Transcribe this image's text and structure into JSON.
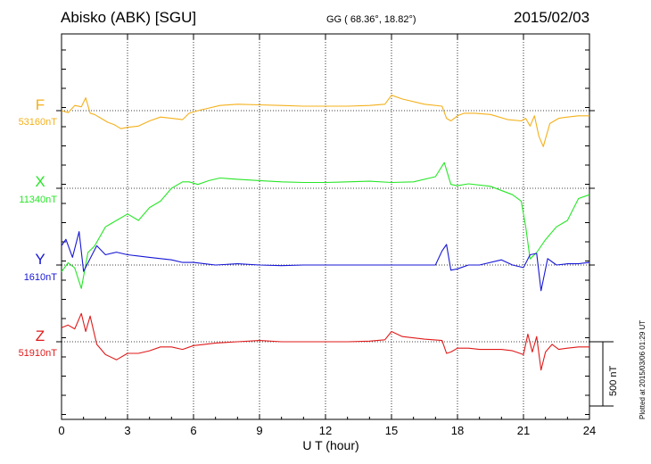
{
  "header": {
    "station": "Abisko (ABK)  [SGU]",
    "coords": "GG ( 68.36°,  18.82°)",
    "date": "2015/02/03"
  },
  "footer": {
    "plotted": "Plotted at 2015/03/06 01:29 UT",
    "scale_bar": "500 nT"
  },
  "colors": {
    "F": "#f4b01a",
    "X": "#27e627",
    "Y": "#1616d6",
    "Z": "#e01a1a",
    "grid": "#000000"
  },
  "chart_data": {
    "type": "line",
    "xlabel": "U T (hour)",
    "xlim": [
      0,
      24
    ],
    "x_ticks": [
      0,
      3,
      6,
      9,
      12,
      15,
      18,
      21,
      24
    ],
    "scale_nT": 500,
    "series": [
      {
        "name": "F",
        "baseline_label": "53160nT",
        "color": "#f4b01a",
        "x": [
          0,
          0.3,
          0.6,
          0.9,
          1.1,
          1.3,
          1.5,
          1.8,
          2.1,
          2.4,
          2.7,
          3.0,
          3.5,
          4.0,
          4.5,
          5.0,
          5.5,
          5.8,
          6.2,
          6.7,
          7.2,
          8,
          9,
          10,
          11,
          12,
          13,
          14,
          14.7,
          15.0,
          15.5,
          16.5,
          17.3,
          17.5,
          17.7,
          18.0,
          18.3,
          18.8,
          19.5,
          20.3,
          20.9,
          21.1,
          21.3,
          21.5,
          21.7,
          21.9,
          22.2,
          22.6,
          23.0,
          23.5,
          24.0
        ],
        "y": [
          0,
          -15,
          40,
          30,
          100,
          -20,
          -30,
          -60,
          -90,
          -110,
          -140,
          -130,
          -120,
          -80,
          -50,
          -60,
          -70,
          -20,
          0,
          20,
          40,
          50,
          45,
          40,
          35,
          35,
          35,
          40,
          50,
          120,
          90,
          50,
          35,
          -60,
          -80,
          -40,
          -20,
          -20,
          -30,
          -70,
          -80,
          -60,
          -120,
          -40,
          -200,
          -280,
          -100,
          -60,
          -50,
          -40,
          -40
        ]
      },
      {
        "name": "X",
        "baseline_label": "11340nT",
        "color": "#27e627",
        "x": [
          0,
          0.3,
          0.6,
          0.9,
          1.2,
          1.5,
          2.0,
          2.5,
          3.0,
          3.5,
          4.0,
          4.5,
          5.0,
          5.5,
          5.8,
          6.2,
          6.7,
          7.2,
          8,
          9,
          10,
          11,
          12,
          13,
          14,
          15.0,
          16,
          17,
          17.4,
          17.7,
          18.0,
          18.5,
          19.5,
          20.5,
          20.9,
          21.1,
          21.3,
          21.6,
          22.0,
          22.5,
          23.0,
          23.5,
          24.0
        ],
        "y": [
          -650,
          -580,
          -620,
          -780,
          -500,
          -450,
          -300,
          -250,
          -200,
          -250,
          -150,
          -100,
          0,
          50,
          50,
          30,
          60,
          80,
          70,
          60,
          50,
          45,
          45,
          50,
          55,
          45,
          50,
          90,
          200,
          30,
          20,
          35,
          15,
          -50,
          -100,
          -300,
          -550,
          -500,
          -400,
          -300,
          -250,
          -80,
          -50
        ]
      },
      {
        "name": "Y",
        "baseline_label": "1610nT",
        "color": "#1616d6",
        "x": [
          0,
          0.2,
          0.5,
          0.8,
          1.0,
          1.3,
          1.6,
          2.0,
          2.5,
          3.0,
          3.5,
          4.0,
          4.5,
          5.0,
          5.5,
          6.0,
          6.5,
          7,
          8,
          9,
          10,
          11,
          12,
          13,
          14,
          15,
          16,
          17,
          17.3,
          17.5,
          17.7,
          18.0,
          18.5,
          19,
          20,
          20.5,
          21.0,
          21.3,
          21.6,
          21.8,
          22.1,
          22.5,
          23,
          23.5,
          24
        ],
        "y": [
          150,
          200,
          60,
          260,
          -50,
          50,
          150,
          80,
          100,
          80,
          70,
          60,
          50,
          40,
          20,
          20,
          10,
          0,
          10,
          0,
          -5,
          0,
          0,
          0,
          0,
          0,
          0,
          0,
          110,
          160,
          -40,
          -30,
          0,
          0,
          40,
          0,
          -20,
          80,
          90,
          -200,
          50,
          0,
          10,
          10,
          20
        ]
      },
      {
        "name": "Z",
        "baseline_label": "51910nT",
        "color": "#e01a1a",
        "x": [
          0,
          0.3,
          0.6,
          0.9,
          1.1,
          1.3,
          1.6,
          2.0,
          2.5,
          3.0,
          3.5,
          4.0,
          4.5,
          5.0,
          5.5,
          6.0,
          6.5,
          7,
          8,
          9,
          10,
          11,
          12,
          13,
          14,
          14.7,
          15.0,
          15.5,
          16.5,
          17.3,
          17.5,
          17.7,
          18.0,
          18.5,
          19,
          20,
          20.5,
          21.0,
          21.2,
          21.4,
          21.6,
          21.8,
          22.0,
          22.3,
          22.6,
          23.0,
          23.5,
          24.0
        ],
        "y": [
          110,
          130,
          100,
          220,
          80,
          200,
          -20,
          -100,
          -140,
          -90,
          -90,
          -70,
          -40,
          -40,
          -60,
          -30,
          -20,
          -10,
          0,
          10,
          0,
          0,
          0,
          0,
          5,
          15,
          80,
          40,
          20,
          10,
          -90,
          -80,
          -50,
          -50,
          -60,
          -60,
          -70,
          -100,
          60,
          -80,
          40,
          -220,
          -80,
          -20,
          -60,
          -50,
          -40,
          -40
        ]
      }
    ]
  }
}
